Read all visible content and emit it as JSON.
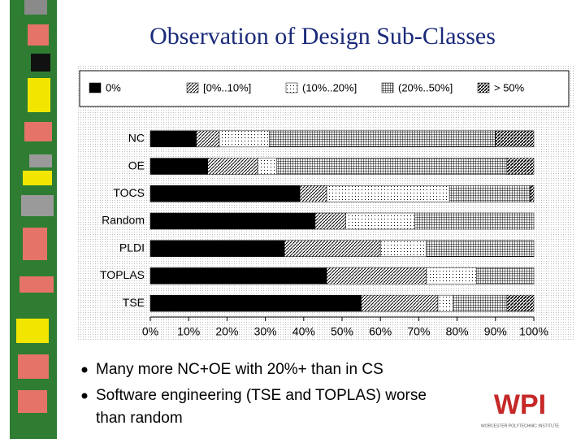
{
  "title": "Observation of Design Sub-Classes",
  "chart_data": {
    "type": "stacked-barh",
    "categories": [
      "NC",
      "OE",
      "TOCS",
      "Random",
      "PLDI",
      "TOPLAS",
      "TSE"
    ],
    "series": [
      {
        "name": "0%",
        "color": "#000000",
        "pattern": "solid",
        "values": [
          12,
          15,
          39,
          43,
          35,
          46,
          55
        ]
      },
      {
        "name": "[0%..10%]",
        "color": "#000000",
        "pattern": "diagonal",
        "values": [
          6,
          13,
          7,
          8,
          25,
          26,
          20
        ]
      },
      {
        "name": "(10%..20%]",
        "color": "#000000",
        "pattern": "dots",
        "values": [
          13,
          5,
          32,
          18,
          12,
          13,
          4
        ]
      },
      {
        "name": "(20%..50%]",
        "color": "#000000",
        "pattern": "grid",
        "values": [
          59,
          60,
          21,
          31,
          28,
          15,
          14
        ]
      },
      {
        "name": "> 50%",
        "color": "#000000",
        "pattern": "hatch",
        "values": [
          10,
          7,
          1,
          0,
          0,
          0,
          7
        ]
      }
    ],
    "xlim": [
      0,
      100
    ],
    "xticks": [
      {
        "value": 0,
        "label": "0%"
      },
      {
        "value": 10,
        "label": "10%"
      },
      {
        "value": 20,
        "label": "20%"
      },
      {
        "value": 30,
        "label": "30%"
      },
      {
        "value": 40,
        "label": "40%"
      },
      {
        "value": 50,
        "label": "50%"
      },
      {
        "value": 60,
        "label": "60%"
      },
      {
        "value": 70,
        "label": "70%"
      },
      {
        "value": 80,
        "label": "80%"
      },
      {
        "value": 90,
        "label": "90%"
      },
      {
        "value": 100,
        "label": "100%"
      }
    ],
    "legend": "top"
  },
  "bullets": [
    "Many more NC+OE with 20%+ than in CS",
    "Software engineering (TSE and TOPLAS) worse than random"
  ],
  "logo": "WPI",
  "logo_caption": "WORCESTER POLYTECHNIC INSTITUTE"
}
